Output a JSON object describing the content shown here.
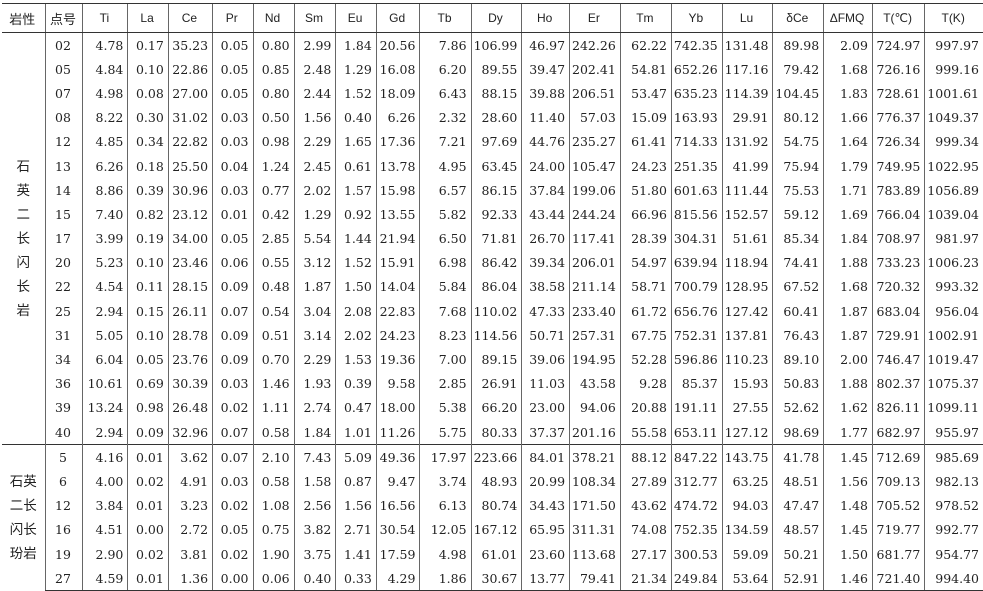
{
  "headers": [
    "岩性",
    "点号",
    "Ti",
    "La",
    "Ce",
    "Pr",
    "Nd",
    "Sm",
    "Eu",
    "Gd",
    "Tb",
    "Dy",
    "Ho",
    "Er",
    "Tm",
    "Yb",
    "Lu",
    "δCe",
    "ΔFMQ",
    "T(℃)",
    "T(K)"
  ],
  "groups": [
    {
      "rock": "石英二长闪长岩",
      "rock_lines": [
        "石",
        "英",
        "二",
        "长",
        "闪",
        "长",
        "岩"
      ],
      "rows": [
        [
          "02",
          "4.78",
          "0.17",
          "35.23",
          "0.05",
          "0.80",
          "2.99",
          "1.84",
          "20.56",
          "7.86",
          "106.99",
          "46.97",
          "242.26",
          "62.22",
          "742.35",
          "131.48",
          "89.98",
          "2.09",
          "724.97",
          "997.97"
        ],
        [
          "05",
          "4.84",
          "0.10",
          "22.86",
          "0.05",
          "0.85",
          "2.48",
          "1.29",
          "16.08",
          "6.20",
          "89.55",
          "39.47",
          "202.41",
          "54.81",
          "652.26",
          "117.16",
          "79.42",
          "1.68",
          "726.16",
          "999.16"
        ],
        [
          "07",
          "4.98",
          "0.08",
          "27.00",
          "0.05",
          "0.80",
          "2.44",
          "1.52",
          "18.09",
          "6.43",
          "88.15",
          "39.88",
          "206.51",
          "53.47",
          "635.23",
          "114.39",
          "104.45",
          "1.83",
          "728.61",
          "1001.61"
        ],
        [
          "08",
          "8.22",
          "0.30",
          "31.02",
          "0.03",
          "0.50",
          "1.56",
          "0.40",
          "6.26",
          "2.32",
          "28.60",
          "11.40",
          "57.03",
          "15.09",
          "163.93",
          "29.91",
          "80.12",
          "1.66",
          "776.37",
          "1049.37"
        ],
        [
          "12",
          "4.85",
          "0.34",
          "22.82",
          "0.03",
          "0.98",
          "2.29",
          "1.65",
          "17.36",
          "7.21",
          "97.69",
          "44.76",
          "235.27",
          "61.41",
          "714.33",
          "131.92",
          "54.75",
          "1.64",
          "726.34",
          "999.34"
        ],
        [
          "13",
          "6.26",
          "0.18",
          "25.50",
          "0.04",
          "1.24",
          "2.45",
          "0.61",
          "13.78",
          "4.95",
          "63.45",
          "24.00",
          "105.47",
          "24.23",
          "251.35",
          "41.99",
          "75.94",
          "1.79",
          "749.95",
          "1022.95"
        ],
        [
          "14",
          "8.86",
          "0.39",
          "30.96",
          "0.03",
          "0.77",
          "2.02",
          "1.57",
          "15.98",
          "6.57",
          "86.15",
          "37.84",
          "199.06",
          "51.80",
          "601.63",
          "111.44",
          "75.53",
          "1.71",
          "783.89",
          "1056.89"
        ],
        [
          "15",
          "7.40",
          "0.82",
          "23.12",
          "0.01",
          "0.42",
          "1.29",
          "0.92",
          "13.55",
          "5.82",
          "92.33",
          "43.44",
          "244.24",
          "66.96",
          "815.56",
          "152.57",
          "59.12",
          "1.69",
          "766.04",
          "1039.04"
        ],
        [
          "17",
          "3.99",
          "0.19",
          "34.00",
          "0.05",
          "2.85",
          "5.54",
          "1.44",
          "21.94",
          "6.50",
          "71.81",
          "26.70",
          "117.41",
          "28.39",
          "304.31",
          "51.61",
          "85.34",
          "1.84",
          "708.97",
          "981.97"
        ],
        [
          "20",
          "5.23",
          "0.10",
          "23.46",
          "0.06",
          "0.55",
          "3.12",
          "1.52",
          "15.91",
          "6.98",
          "86.42",
          "39.34",
          "206.01",
          "54.97",
          "639.94",
          "118.94",
          "74.41",
          "1.88",
          "733.23",
          "1006.23"
        ],
        [
          "22",
          "4.54",
          "0.11",
          "28.15",
          "0.09",
          "0.48",
          "1.87",
          "1.50",
          "14.04",
          "5.84",
          "86.04",
          "38.58",
          "211.14",
          "58.71",
          "700.79",
          "128.95",
          "67.52",
          "1.68",
          "720.32",
          "993.32"
        ],
        [
          "25",
          "2.94",
          "0.15",
          "26.11",
          "0.07",
          "0.54",
          "3.04",
          "2.08",
          "22.83",
          "7.68",
          "110.02",
          "47.33",
          "233.40",
          "61.72",
          "656.76",
          "127.42",
          "60.41",
          "1.87",
          "683.04",
          "956.04"
        ],
        [
          "31",
          "5.05",
          "0.10",
          "28.78",
          "0.09",
          "0.51",
          "3.14",
          "2.02",
          "24.23",
          "8.23",
          "114.56",
          "50.71",
          "257.31",
          "67.75",
          "752.31",
          "137.81",
          "76.43",
          "1.87",
          "729.91",
          "1002.91"
        ],
        [
          "34",
          "6.04",
          "0.05",
          "23.76",
          "0.09",
          "0.70",
          "2.29",
          "1.53",
          "19.36",
          "7.00",
          "89.15",
          "39.06",
          "194.95",
          "52.28",
          "596.86",
          "110.23",
          "89.10",
          "2.00",
          "746.47",
          "1019.47"
        ],
        [
          "36",
          "10.61",
          "0.69",
          "30.39",
          "0.03",
          "1.46",
          "1.93",
          "0.39",
          "9.58",
          "2.85",
          "26.91",
          "11.03",
          "43.58",
          "9.28",
          "85.37",
          "15.93",
          "50.83",
          "1.88",
          "802.37",
          "1075.37"
        ],
        [
          "39",
          "13.24",
          "0.98",
          "26.48",
          "0.02",
          "1.11",
          "2.74",
          "0.47",
          "18.00",
          "5.38",
          "66.20",
          "23.00",
          "94.06",
          "20.88",
          "191.11",
          "27.55",
          "52.62",
          "1.62",
          "826.11",
          "1099.11"
        ],
        [
          "40",
          "2.94",
          "0.09",
          "32.96",
          "0.07",
          "0.58",
          "1.84",
          "1.01",
          "11.26",
          "5.75",
          "80.33",
          "37.37",
          "201.16",
          "55.58",
          "653.11",
          "127.12",
          "98.69",
          "1.77",
          "682.97",
          "955.97"
        ]
      ]
    },
    {
      "rock": "石英二长闪长玢岩",
      "rock_lines": [
        "石英",
        "二长",
        "闪长",
        "玢岩"
      ],
      "rows": [
        [
          "5",
          "4.16",
          "0.01",
          "3.62",
          "0.07",
          "2.10",
          "7.43",
          "5.09",
          "49.36",
          "17.97",
          "223.66",
          "84.01",
          "378.21",
          "88.12",
          "847.22",
          "143.75",
          "41.78",
          "1.45",
          "712.69",
          "985.69"
        ],
        [
          "6",
          "4.00",
          "0.02",
          "4.91",
          "0.03",
          "0.58",
          "1.58",
          "0.87",
          "9.47",
          "3.74",
          "48.93",
          "20.99",
          "108.34",
          "27.89",
          "312.77",
          "63.25",
          "48.51",
          "1.56",
          "709.13",
          "982.13"
        ],
        [
          "12",
          "3.84",
          "0.01",
          "3.23",
          "0.02",
          "1.08",
          "2.56",
          "1.56",
          "16.56",
          "6.13",
          "80.74",
          "34.43",
          "171.50",
          "43.62",
          "474.72",
          "94.03",
          "47.47",
          "1.48",
          "705.52",
          "978.52"
        ],
        [
          "16",
          "4.51",
          "0.00",
          "2.72",
          "0.05",
          "0.75",
          "3.82",
          "2.71",
          "30.54",
          "12.05",
          "167.12",
          "65.95",
          "311.31",
          "74.08",
          "752.35",
          "134.59",
          "48.57",
          "1.45",
          "719.77",
          "992.77"
        ],
        [
          "19",
          "2.90",
          "0.02",
          "3.81",
          "0.02",
          "1.90",
          "3.75",
          "1.41",
          "17.59",
          "4.98",
          "61.01",
          "23.60",
          "113.68",
          "27.17",
          "300.53",
          "59.09",
          "50.21",
          "1.50",
          "681.77",
          "954.77"
        ],
        [
          "27",
          "4.59",
          "0.01",
          "1.36",
          "0.00",
          "0.06",
          "0.40",
          "0.33",
          "4.29",
          "1.86",
          "30.67",
          "13.77",
          "79.41",
          "21.34",
          "249.84",
          "53.64",
          "52.91",
          "1.46",
          "721.40",
          "994.40"
        ]
      ]
    }
  ]
}
